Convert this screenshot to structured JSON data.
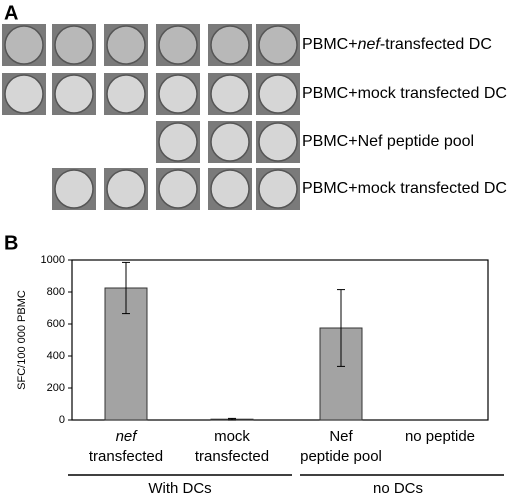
{
  "panel_a": {
    "label": "A",
    "rows": [
      [
        "PBMC+",
        "nef",
        "-transfected DC"
      ],
      [
        "PBMC+mock transfected DC"
      ],
      [
        "PBMC+Nef peptide pool"
      ],
      [
        "PBMC+mock transfected DC"
      ]
    ]
  },
  "chart_data": {
    "type": "bar",
    "panel_label": "B",
    "y_label": "SFC/100 000 PBMC",
    "categories": [
      [
        "nef",
        "transfected"
      ],
      [
        "mock",
        "transfected"
      ],
      [
        "Nef",
        "peptide pool"
      ],
      [
        "no peptide"
      ]
    ],
    "values": [
      825,
      5,
      575,
      0
    ],
    "errors": [
      160,
      5,
      240,
      0
    ],
    "color": "#a3a3a3",
    "groups": [
      "With DCs",
      "no DCs"
    ],
    "ylim": [
      0,
      1000
    ],
    "yticks": [
      0,
      200,
      400,
      600,
      800,
      1000
    ]
  }
}
